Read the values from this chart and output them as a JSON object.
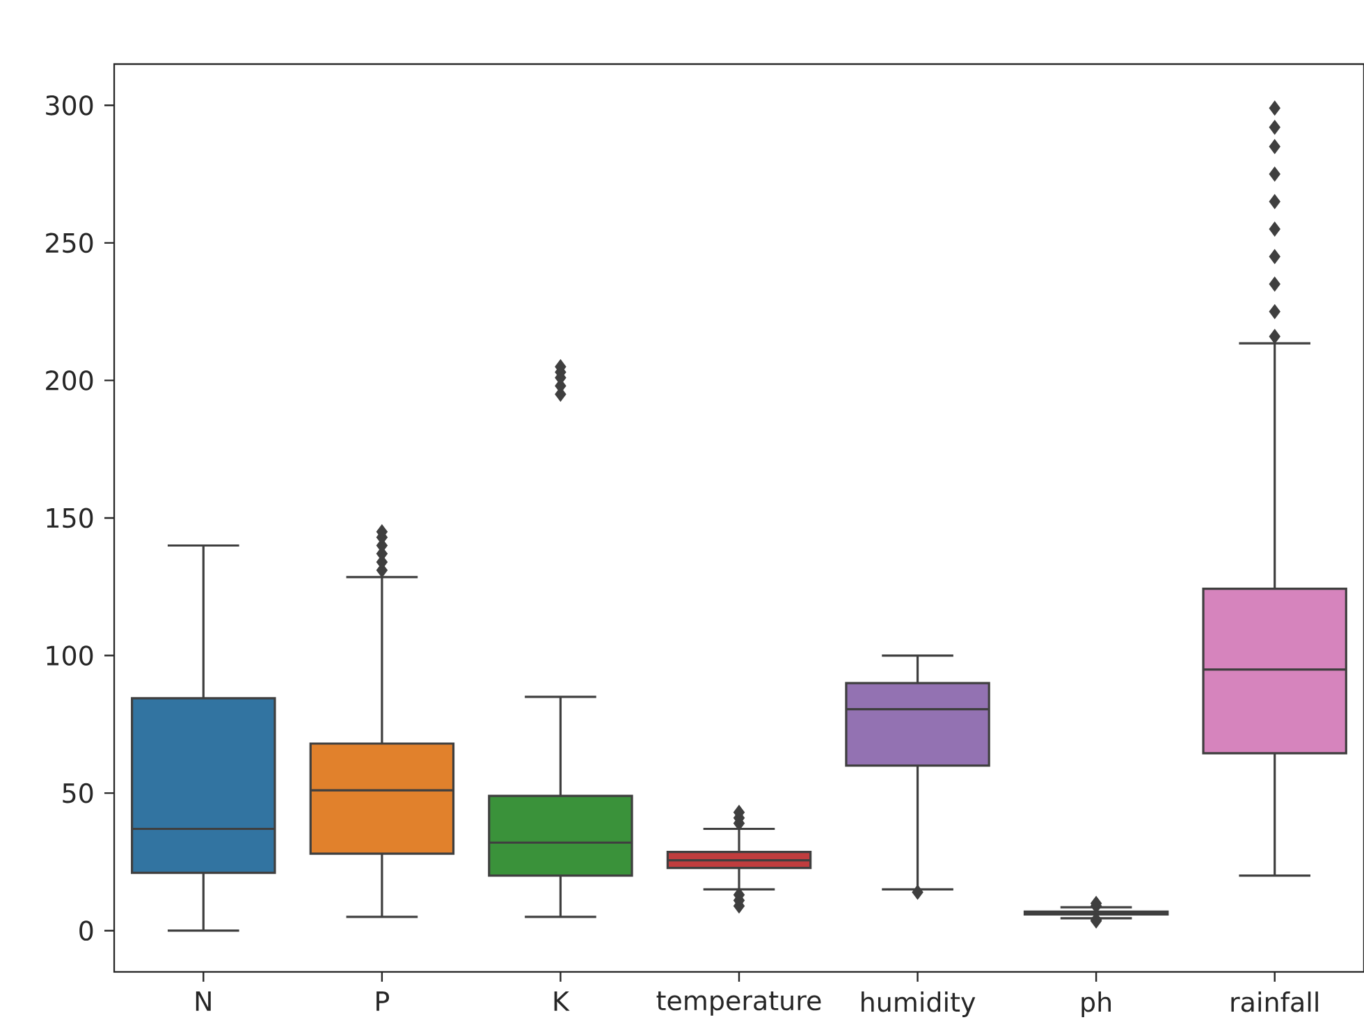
{
  "chart_data": {
    "type": "box",
    "categories": [
      "N",
      "P",
      "K",
      "temperature",
      "humidity",
      "ph",
      "rainfall"
    ],
    "colors": [
      "#3274a1",
      "#e1812c",
      "#3a923a",
      "#c03d3e",
      "#9372b2",
      "#845b53",
      "#d684bd"
    ],
    "boxes": [
      {
        "low": 0,
        "q1": 21,
        "median": 37,
        "q3": 84.5,
        "high": 140
      },
      {
        "low": 5,
        "q1": 28,
        "median": 51,
        "q3": 68,
        "high": 128.5,
        "outliers": [
          131,
          134,
          137,
          140,
          143,
          145
        ]
      },
      {
        "low": 5,
        "q1": 20,
        "median": 32,
        "q3": 49,
        "high": 85,
        "outliers": [
          195,
          198,
          201,
          203,
          205
        ]
      },
      {
        "low": 15,
        "q1": 22.8,
        "median": 25.6,
        "q3": 28.6,
        "high": 37,
        "outliers": [
          9,
          11,
          13,
          39,
          41,
          43
        ]
      },
      {
        "low": 15,
        "q1": 60,
        "median": 80.5,
        "q3": 90,
        "high": 100,
        "outliers": [
          14
        ]
      },
      {
        "low": 4.5,
        "q1": 5.9,
        "median": 6.4,
        "q3": 6.9,
        "high": 8.5,
        "outliers": [
          3.5,
          4,
          9,
          9.9
        ]
      },
      {
        "low": 20,
        "q1": 64.5,
        "median": 94.9,
        "q3": 124.3,
        "high": 213.5,
        "outliers": [
          216,
          225,
          235,
          245,
          255,
          265,
          275,
          285,
          292,
          299
        ]
      }
    ],
    "ylim": [
      -15,
      315
    ],
    "yticks": [
      0,
      50,
      100,
      150,
      200,
      250,
      300
    ]
  }
}
